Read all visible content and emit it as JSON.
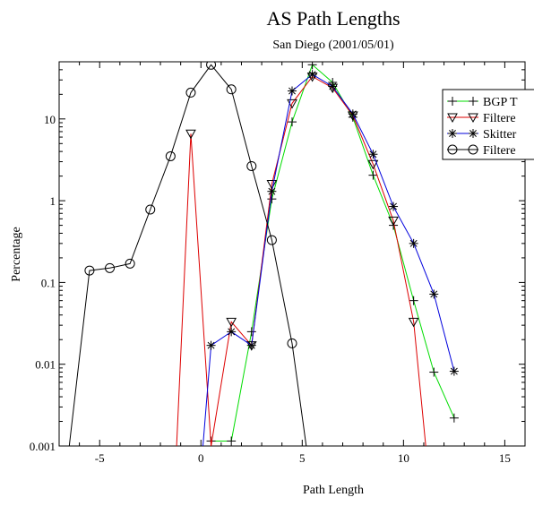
{
  "chart_data": {
    "type": "line",
    "title": "AS Path Lengths",
    "subtitle": "San Diego (2001/05/01)",
    "xlabel": "Path Length",
    "ylabel": "Percentage",
    "xlim": [
      -7,
      16
    ],
    "ylim": [
      0.001,
      50
    ],
    "yscale": "log",
    "grid": false,
    "legend_position": "top-right",
    "x_ticks": [
      {
        "value": -5,
        "label": "-5"
      },
      {
        "value": 0,
        "label": "0"
      },
      {
        "value": 5,
        "label": "5"
      },
      {
        "value": 10,
        "label": "10"
      },
      {
        "value": 15,
        "label": "15"
      }
    ],
    "y_ticks": [
      {
        "value": 0.001,
        "label": "0.001"
      },
      {
        "value": 0.01,
        "label": "0.01"
      },
      {
        "value": 0.1,
        "label": "0.1"
      },
      {
        "value": 1,
        "label": "1"
      },
      {
        "value": 10,
        "label": "10"
      }
    ],
    "series": [
      {
        "name": "BGP T",
        "color": "#00dd00",
        "marker": "plus",
        "points": [
          [
            0.5,
            0.00115
          ],
          [
            1.5,
            0.00115
          ],
          [
            2.5,
            0.025
          ],
          [
            3.5,
            1.05
          ],
          [
            4.5,
            9.2
          ],
          [
            5.5,
            46
          ],
          [
            6.5,
            28
          ],
          [
            7.5,
            10.5
          ],
          [
            8.5,
            2.05
          ],
          [
            9.5,
            0.5
          ],
          [
            10.5,
            0.06
          ],
          [
            11.5,
            0.008
          ],
          [
            12.5,
            0.0022
          ]
        ]
      },
      {
        "name": "Filtere",
        "color": "#dd0000",
        "marker": "triangle-down",
        "points": [
          [
            -1.2,
            0.001
          ],
          [
            -0.5,
            6.6
          ],
          [
            0.5,
            0.001
          ],
          [
            1.5,
            0.033
          ],
          [
            2.5,
            0.017
          ],
          [
            3.5,
            1.6
          ],
          [
            4.5,
            15.5
          ],
          [
            5.5,
            33
          ],
          [
            6.5,
            24
          ],
          [
            7.5,
            11
          ],
          [
            8.5,
            2.8
          ],
          [
            9.5,
            0.57
          ],
          [
            10.5,
            0.033
          ],
          [
            11.1,
            0.001
          ]
        ]
      },
      {
        "name": "Skitter",
        "color": "#0000dd",
        "marker": "asterisk",
        "points": [
          [
            0.1,
            0.001
          ],
          [
            0.5,
            0.017
          ],
          [
            1.5,
            0.025
          ],
          [
            2.5,
            0.017
          ],
          [
            3.5,
            1.3
          ],
          [
            4.5,
            22
          ],
          [
            5.5,
            35
          ],
          [
            6.5,
            25
          ],
          [
            7.5,
            11.5
          ],
          [
            8.5,
            3.7
          ],
          [
            9.5,
            0.85
          ],
          [
            10.5,
            0.3
          ],
          [
            11.5,
            0.072
          ],
          [
            12.5,
            0.0082
          ]
        ]
      },
      {
        "name": "Filtere",
        "color": "#000000",
        "marker": "circle",
        "points": [
          [
            -6.5,
            0.001
          ],
          [
            -5.5,
            0.14
          ],
          [
            -4.5,
            0.15
          ],
          [
            -3.5,
            0.17
          ],
          [
            -2.5,
            0.78
          ],
          [
            -1.5,
            3.5
          ],
          [
            -0.5,
            21
          ],
          [
            0.5,
            46
          ],
          [
            1.5,
            23
          ],
          [
            2.5,
            2.65
          ],
          [
            3.5,
            0.33
          ],
          [
            4.5,
            0.018
          ],
          [
            5.2,
            0.001
          ]
        ]
      }
    ]
  }
}
